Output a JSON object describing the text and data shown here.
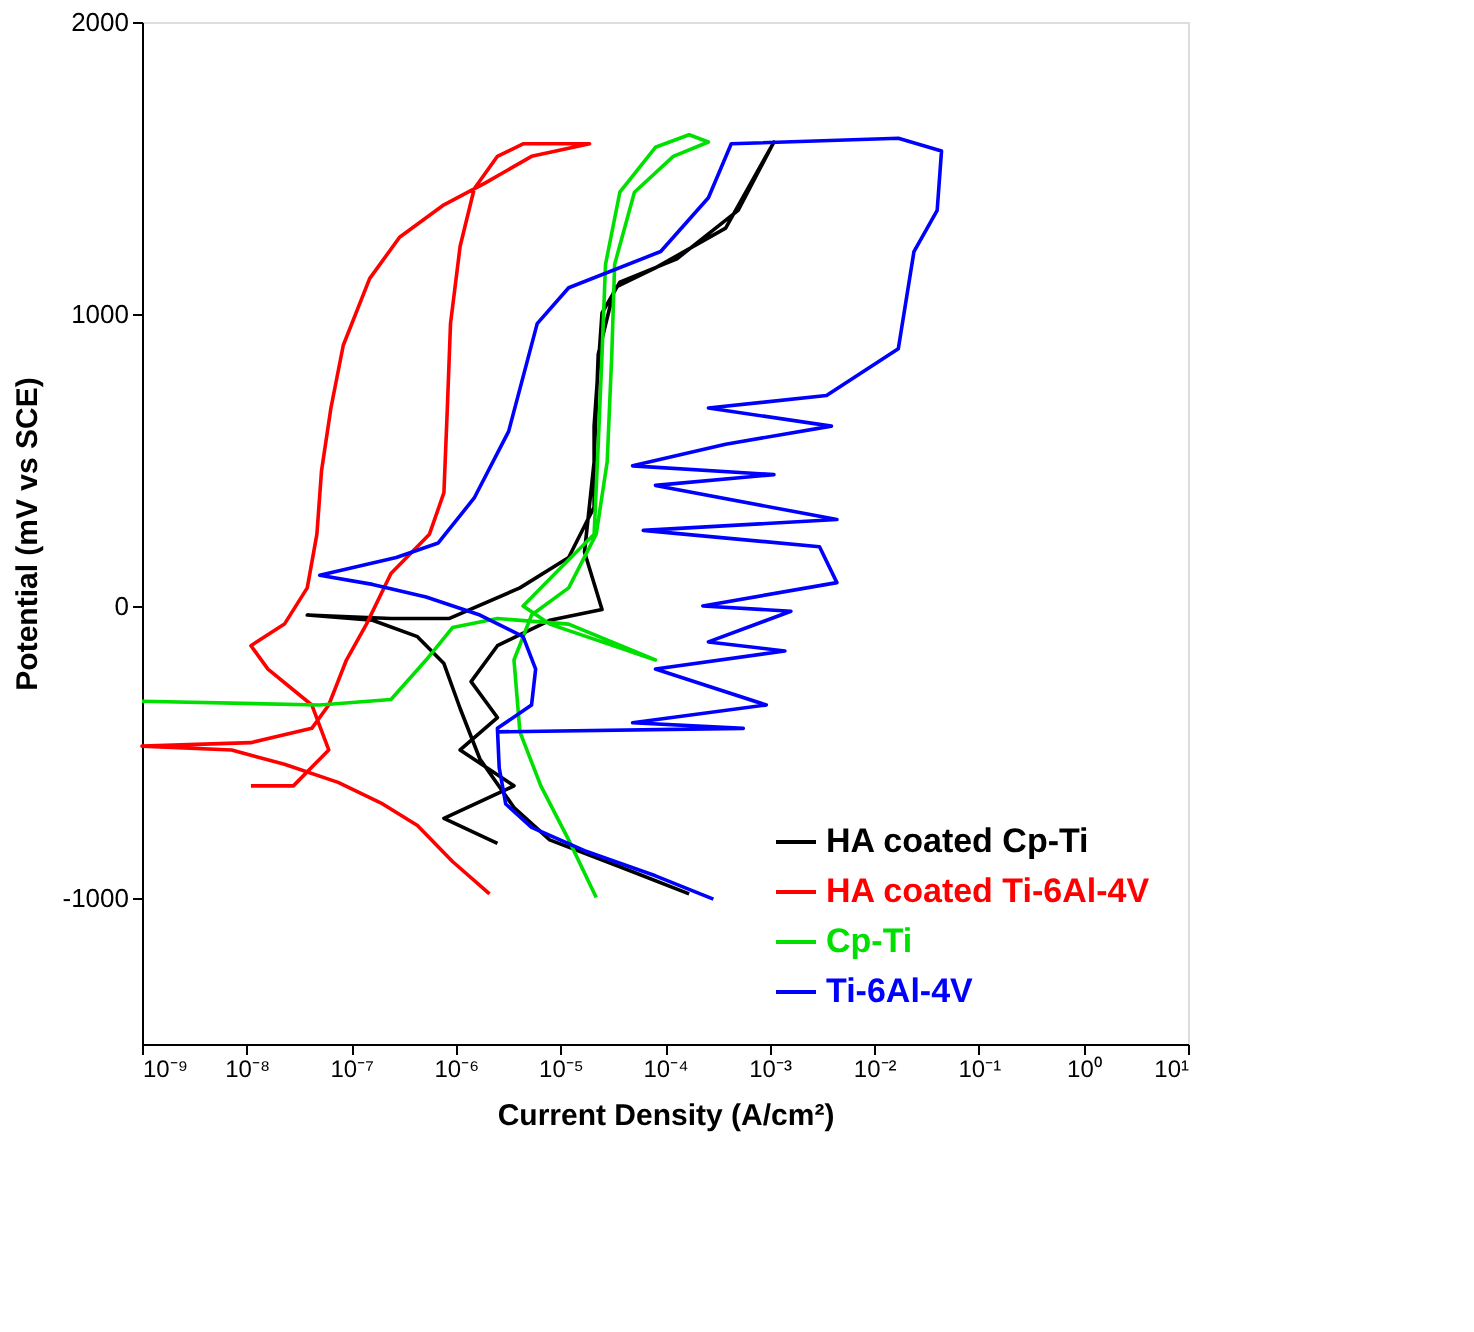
{
  "chart_data": {
    "type": "line",
    "xlabel": "Current Density (A/cm²)",
    "ylabel": "Potential (mV vs SCE)",
    "log": "x",
    "xlim": [
      1e-09,
      10
    ],
    "ylim": [
      -1500,
      2000
    ],
    "xticks": [
      {
        "value": 1e-09,
        "label": "10⁻⁹"
      },
      {
        "value": 1e-08,
        "label": "10⁻⁸"
      },
      {
        "value": 1e-07,
        "label": "10⁻⁷"
      },
      {
        "value": 1e-06,
        "label": "10⁻⁶"
      },
      {
        "value": 1e-05,
        "label": "10⁻⁵"
      },
      {
        "value": 0.0001,
        "label": "10⁻⁴"
      },
      {
        "value": 0.001,
        "label": "10⁻³"
      },
      {
        "value": 0.01,
        "label": "10⁻²"
      },
      {
        "value": 0.1,
        "label": "10⁻¹"
      },
      {
        "value": 1,
        "label": "10⁰"
      },
      {
        "value": 10,
        "label": "10¹"
      }
    ],
    "yticks": [
      -1000,
      0,
      1000,
      2000
    ],
    "grid": false,
    "legend": "bottom right",
    "series": [
      {
        "name": "HA coated Cp-Ti",
        "color": "#000000",
        "x": [
          0.00017,
          3.7e-05,
          7.9e-06,
          3.6e-06,
          1.7e-06,
          1.1e-06,
          7.7e-07,
          4.3e-07,
          1.6e-07,
          3.8e-08,
          2.4e-07,
          8.6e-07,
          4.1e-06,
          1.2e-05,
          2.1e-05,
          2.1e-05,
          2.5e-05,
          3.7e-05,
          0.00013,
          0.0005,
          0.0011,
          0.00038,
          8.1e-05,
          3.3e-05,
          2.3e-05,
          2.1e-05,
          1.7e-05,
          2.5e-05,
          7.9e-06,
          2.5e-06,
          1.4e-06,
          2.5e-06,
          1.1e-06,
          3.6e-06,
          7.7e-07,
          2.5e-06
        ],
        "values": [
          -986,
          -893,
          -801,
          -690,
          -524,
          -351,
          -197,
          -105,
          -49,
          -31,
          -43,
          -43,
          62,
          166,
          339,
          616,
          1004,
          1109,
          1189,
          1355,
          1589,
          1294,
          1158,
          1090,
          862,
          493,
          185,
          -12,
          -49,
          -136,
          -259,
          -382,
          -493,
          -616,
          -727,
          -813
        ]
      },
      {
        "name": "HA coated Ti-6Al-4V",
        "color": "#ff0000",
        "x": [
          2.1e-06,
          9.3e-07,
          4.3e-07,
          2e-07,
          7.5e-08,
          2.3e-08,
          7.2e-09,
          1e-09,
          1.1e-08,
          4.2e-08,
          6.1e-08,
          9e-08,
          1.4e-07,
          2.4e-07,
          5.6e-07,
          7.7e-07,
          8.3e-07,
          8.9e-07,
          1.1e-06,
          1.5e-06,
          2.5e-06,
          4.4e-06,
          1.9e-05,
          5.3e-06,
          1.9e-06,
          7.7e-07,
          2.9e-07,
          1.5e-07,
          8.4e-08,
          6.4e-08,
          5.2e-08,
          4.7e-08,
          3.8e-08,
          2.3e-08,
          1.1e-08,
          1.6e-08,
          4.2e-08,
          6.1e-08,
          2.8e-08,
          1.1e-08
        ],
        "values": [
          -986,
          -875,
          -752,
          -678,
          -604,
          -542,
          -493,
          -480,
          -468,
          -419,
          -339,
          -185,
          -62,
          111,
          246,
          388,
          678,
          967,
          1232,
          1429,
          1540,
          1583,
          1583,
          1540,
          1448,
          1374,
          1263,
          1121,
          893,
          678,
          462,
          246,
          62,
          -62,
          -136,
          -216,
          -339,
          -493,
          -616,
          -616
        ]
      },
      {
        "name": "Cp-Ti",
        "color": "#00e000",
        "x": [
          1e-09,
          5e-08,
          2.4e-07,
          5.2e-07,
          9.3e-07,
          2.5e-06,
          1.2e-05,
          8.1e-05,
          2.5e-05,
          7.9e-06,
          4.4e-06,
          9.6e-06,
          2.1e-05,
          2.3e-05,
          2.5e-05,
          2.7e-05,
          3.7e-05,
          8.1e-05,
          0.00017,
          0.00026,
          0.00012,
          5.1e-05,
          3.3e-05,
          3.1e-05,
          2.8e-05,
          2.2e-05,
          1.2e-05,
          5.3e-06,
          3.6e-06,
          4.1e-06,
          6.5e-06,
          1.2e-05,
          2.2e-05
        ],
        "values": [
          -326,
          -339,
          -320,
          -185,
          -74,
          -43,
          -62,
          -185,
          -123,
          -62,
          0,
          123,
          246,
          554,
          862,
          1170,
          1417,
          1571,
          1614,
          1589,
          1540,
          1417,
          1170,
          862,
          493,
          246,
          62,
          -31,
          -185,
          -431,
          -616,
          -801,
          -998
        ]
      },
      {
        "name": "Ti-6Al-4V",
        "color": "#0000ff",
        "x": [
          0.00029,
          8.1e-05,
          1.7e-05,
          5.3e-06,
          3e-06,
          2.6e-06,
          2.5e-06,
          5.3e-06,
          5.8e-06,
          4.4e-06,
          1.7e-06,
          5.2e-07,
          1.6e-07,
          5e-08,
          2.7e-07,
          6.8e-07,
          1.5e-06,
          3.2e-06,
          6e-06,
          1.2e-05,
          9.1e-05,
          0.00026,
          0.00043,
          0.017,
          0.044,
          0.04,
          0.024,
          0.017,
          0.0035,
          0.00026,
          0.0039,
          0.00038,
          4.9e-05,
          0.0011,
          8.1e-05,
          0.0044,
          6.2e-05,
          0.003,
          0.0044,
          0.00023,
          0.0016,
          0.00026,
          0.0014,
          8.1e-05,
          0.00093,
          4.9e-05,
          0.00056,
          2.5e-06
        ],
        "values": [
          -1004,
          -924,
          -838,
          -758,
          -678,
          -554,
          -419,
          -339,
          -216,
          -105,
          -31,
          31,
          74,
          105,
          166,
          216,
          370,
          598,
          967,
          1090,
          1214,
          1398,
          1583,
          1602,
          1558,
          1355,
          1214,
          881,
          721,
          678,
          616,
          554,
          480,
          450,
          413,
          296,
          259,
          203,
          80,
          0,
          -18,
          -123,
          -154,
          -216,
          -339,
          -400,
          -419,
          -431
        ]
      }
    ]
  }
}
